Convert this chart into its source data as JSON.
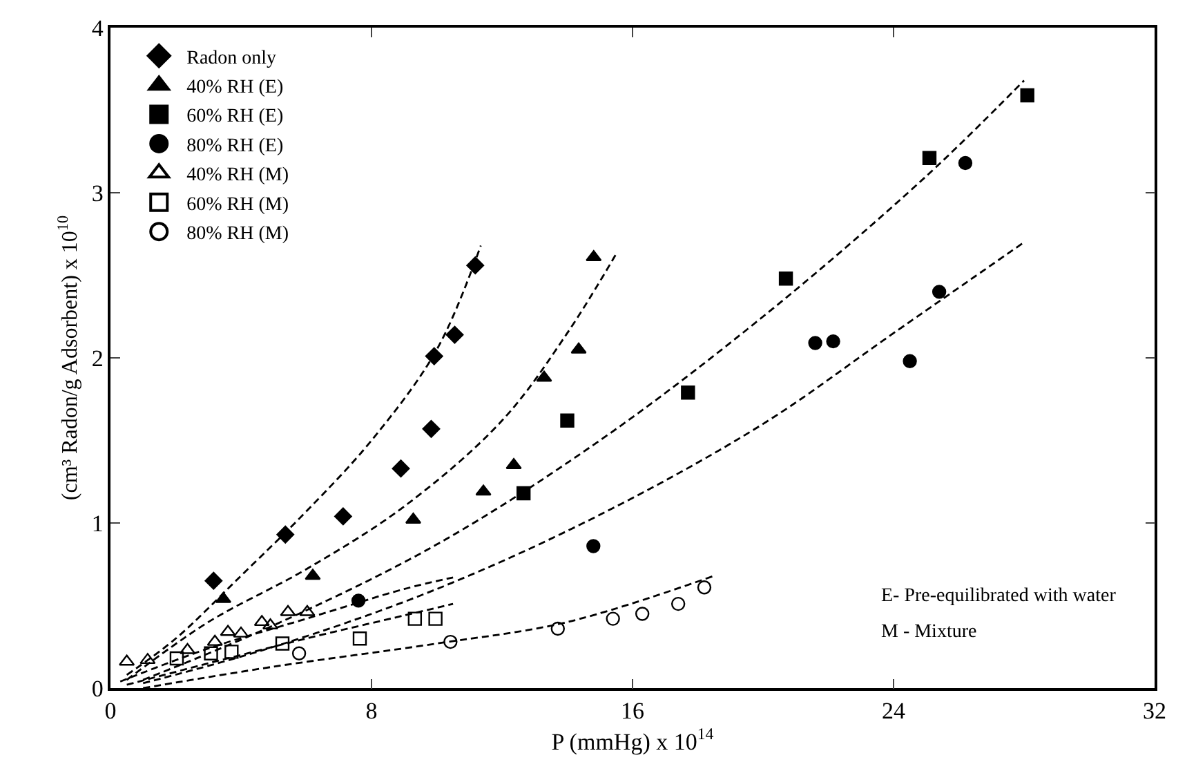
{
  "chart_data": {
    "type": "scatter",
    "xlabel": "P (mmHg) x 10$^{14}$",
    "ylabel": "(cm³ Radon/g Adsorbent) x 10$^{10}$",
    "xlim": [
      0,
      32
    ],
    "xticks": [
      0,
      8,
      16,
      24,
      32
    ],
    "ylim": [
      0,
      4
    ],
    "yticks": [
      0,
      1,
      2,
      3,
      4
    ],
    "legend": "top left",
    "series": [
      {
        "name": "Radon only",
        "color": "#000000",
        "marker": "diamond",
        "x": [
          3.16,
          5.36,
          7.13,
          8.9,
          9.83,
          9.92,
          10.55,
          11.18
        ],
        "values": [
          0.65,
          0.93,
          1.04,
          1.33,
          1.57,
          2.01,
          2.14,
          2.56
        ]
      },
      {
        "name": "40% RH (E)",
        "color": "#000000",
        "marker": "triangle",
        "x": [
          3.46,
          6.2,
          9.28,
          11.43,
          12.36,
          13.29,
          14.35,
          14.81
        ],
        "values": [
          0.54,
          0.68,
          1.02,
          1.19,
          1.35,
          1.88,
          2.05,
          2.61
        ]
      },
      {
        "name": "60% RH (E)",
        "color": "#000000",
        "marker": "square",
        "x": [
          12.66,
          14.0,
          17.7,
          20.7,
          25.1,
          28.1
        ],
        "values": [
          1.18,
          1.62,
          1.79,
          2.48,
          3.21,
          3.59
        ]
      },
      {
        "name": "80% RH (E)",
        "color": "#000000",
        "marker": "circle",
        "x": [
          7.6,
          14.8,
          21.6,
          22.15,
          24.5,
          25.4,
          26.2
        ],
        "values": [
          0.53,
          0.86,
          2.09,
          2.1,
          1.98,
          2.4,
          3.18
        ]
      },
      {
        "name": "40% RH (M)",
        "color": "#000000",
        "marker": "triangle-open",
        "x": [
          0.5,
          1.14,
          2.36,
          3.2,
          3.6,
          4.0,
          4.64,
          4.9,
          5.44,
          6.03
        ],
        "values": [
          0.16,
          0.17,
          0.23,
          0.28,
          0.34,
          0.33,
          0.4,
          0.38,
          0.46,
          0.46
        ]
      },
      {
        "name": "60% RH (M)",
        "color": "#000000",
        "marker": "square-open",
        "x": [
          2.03,
          3.08,
          3.71,
          5.27,
          7.64,
          9.33,
          9.96
        ],
        "values": [
          0.18,
          0.21,
          0.22,
          0.27,
          0.3,
          0.42,
          0.42
        ]
      },
      {
        "name": "80% RH (M)",
        "color": "#000000",
        "marker": "circle-open",
        "x": [
          5.78,
          10.42,
          13.71,
          15.4,
          16.3,
          17.4,
          18.2
        ],
        "values": [
          0.21,
          0.28,
          0.36,
          0.42,
          0.45,
          0.51,
          0.61
        ]
      },
      {
        "type": "line",
        "color": "#000000",
        "line_style": "dashed",
        "marker": "none",
        "x": [
          0.5,
          2,
          4,
          6,
          8,
          10,
          11.35
        ],
        "values": [
          0.08,
          0.3,
          0.68,
          1.07,
          1.5,
          2.05,
          2.68
        ]
      },
      {
        "type": "line",
        "color": "#000000",
        "line_style": "dashed",
        "marker": "none",
        "x": [
          0.5,
          3,
          6,
          9,
          12,
          14,
          15.5
        ],
        "values": [
          0.05,
          0.4,
          0.72,
          1.1,
          1.62,
          2.15,
          2.63
        ]
      },
      {
        "type": "line",
        "color": "#000000",
        "line_style": "dashed",
        "marker": "none",
        "x": [
          1,
          5,
          10,
          15,
          20,
          25,
          28
        ],
        "values": [
          0.05,
          0.38,
          0.87,
          1.5,
          2.25,
          3.1,
          3.68
        ]
      },
      {
        "type": "line",
        "color": "#000000",
        "line_style": "dashed",
        "marker": "none",
        "x": [
          1,
          5,
          10,
          15,
          20,
          24,
          28
        ],
        "values": [
          0.03,
          0.25,
          0.6,
          1.05,
          1.6,
          2.15,
          2.7
        ]
      },
      {
        "type": "line",
        "color": "#000000",
        "line_style": "dashed",
        "marker": "none",
        "x": [
          0.3,
          3,
          6,
          9,
          10.5
        ],
        "values": [
          0.04,
          0.24,
          0.42,
          0.6,
          0.67
        ]
      },
      {
        "type": "line",
        "color": "#000000",
        "line_style": "dashed",
        "marker": "none",
        "x": [
          0.5,
          3,
          6,
          9,
          10.5
        ],
        "values": [
          0.02,
          0.15,
          0.3,
          0.44,
          0.51
        ]
      },
      {
        "type": "line",
        "color": "#000000",
        "line_style": "dashed",
        "marker": "none",
        "x": [
          1,
          5,
          10,
          14,
          18.5
        ],
        "values": [
          0.0,
          0.13,
          0.27,
          0.4,
          0.68
        ]
      }
    ],
    "annotations": [
      "E- Pre-equilibrated with water",
      "M - Mixture"
    ]
  }
}
